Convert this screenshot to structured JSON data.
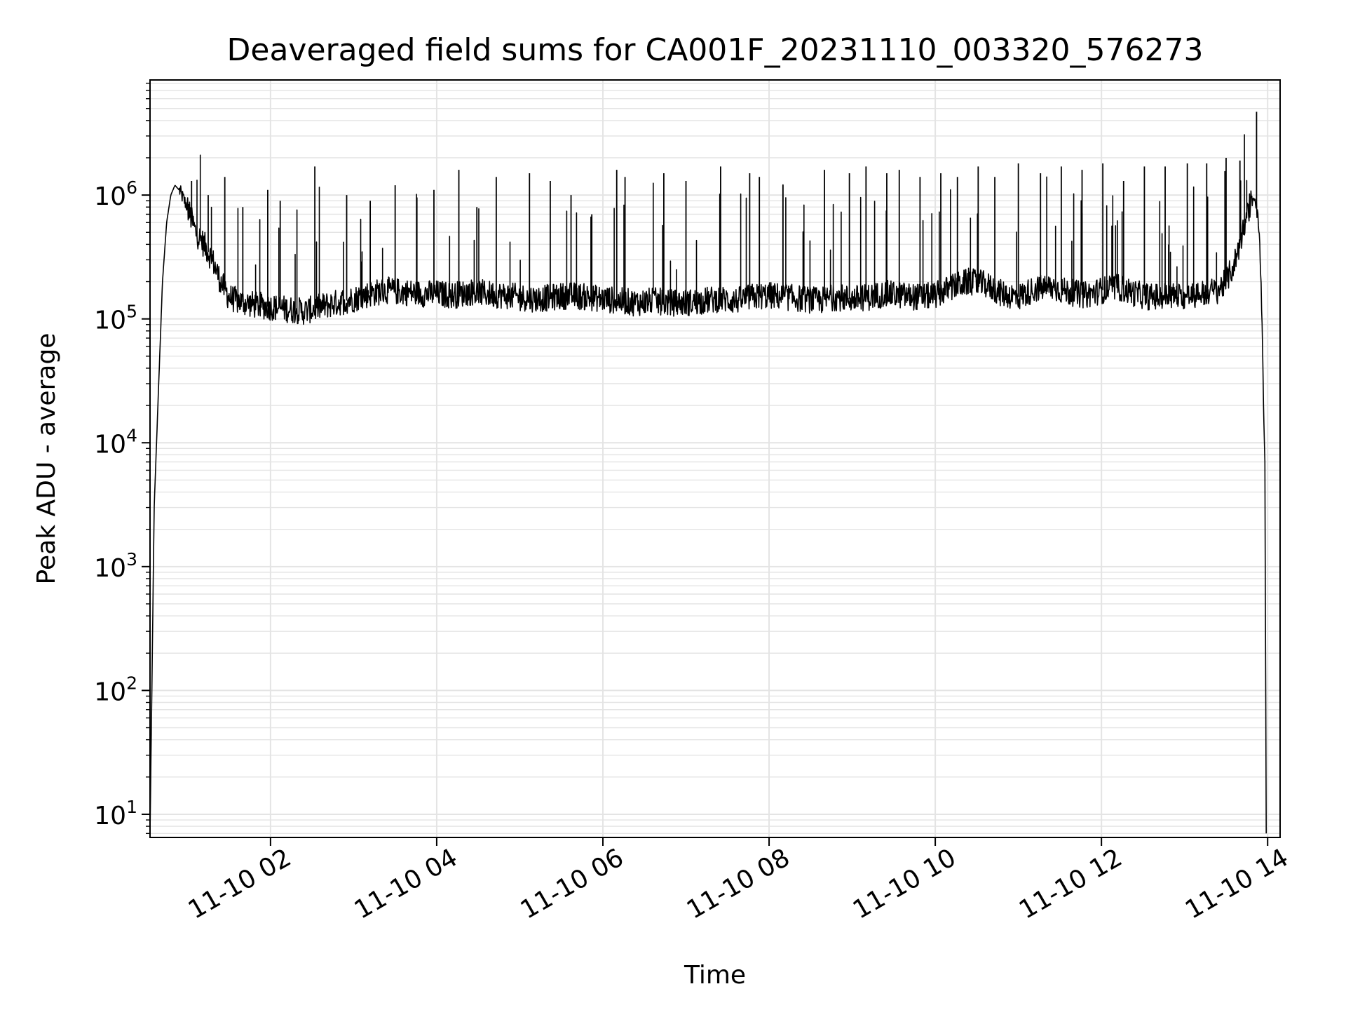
{
  "chart_data": {
    "type": "line",
    "title": "Deaveraged field sums for CA001F_20231110_003320_576273",
    "xlabel": "Time",
    "ylabel": "Peak ADU - average",
    "yscale": "log",
    "ylim": [
      6.5,
      8500000
    ],
    "xlim_hours": [
      0.55,
      14.15
    ],
    "grid": true,
    "legend": "none",
    "colors": {
      "line": "#000000",
      "grid": "#e4e4e4",
      "axes": "#000000",
      "background": "#ffffff"
    },
    "x_ticks": [
      {
        "label": "11-10 02",
        "hour": 2
      },
      {
        "label": "11-10 04",
        "hour": 4
      },
      {
        "label": "11-10 06",
        "hour": 6
      },
      {
        "label": "11-10 08",
        "hour": 8
      },
      {
        "label": "11-10 10",
        "hour": 10
      },
      {
        "label": "11-10 12",
        "hour": 12
      },
      {
        "label": "11-10 14",
        "hour": 14
      }
    ],
    "y_ticks": [
      {
        "base": "10",
        "exp": "1",
        "value": 10
      },
      {
        "base": "10",
        "exp": "2",
        "value": 100
      },
      {
        "base": "10",
        "exp": "3",
        "value": 1000
      },
      {
        "base": "10",
        "exp": "4",
        "value": 10000
      },
      {
        "base": "10",
        "exp": "5",
        "value": 100000
      },
      {
        "base": "10",
        "exp": "6",
        "value": 1000000
      }
    ],
    "series": [
      {
        "x": [
          "11-10 00:33",
          "11-10 00:36",
          "11-10 00:39",
          "11-10 00:42",
          "11-10 00:45",
          "11-10 00:48",
          "11-10 00:51",
          "11-10 00:54",
          "11-10 01:00",
          "11-10 01:06",
          "11-10 01:12",
          "11-10 01:18",
          "11-10 01:24",
          "11-10 01:30",
          "11-10 01:36",
          "11-10 01:48",
          "11-10 02:00",
          "11-10 02:12",
          "11-10 02:24",
          "11-10 02:36",
          "11-10 02:48",
          "11-10 03:00",
          "11-10 03:12",
          "11-10 03:24",
          "11-10 03:36",
          "11-10 03:48",
          "11-10 04:00",
          "11-10 04:12",
          "11-10 04:24",
          "11-10 04:36",
          "11-10 04:48",
          "11-10 05:00",
          "11-10 05:12",
          "11-10 05:24",
          "11-10 05:36",
          "11-10 05:48",
          "11-10 06:00",
          "11-10 06:12",
          "11-10 06:24",
          "11-10 06:36",
          "11-10 06:48",
          "11-10 07:00",
          "11-10 07:12",
          "11-10 07:24",
          "11-10 07:36",
          "11-10 07:48",
          "11-10 08:00",
          "11-10 08:12",
          "11-10 08:24",
          "11-10 08:36",
          "11-10 08:48",
          "11-10 09:00",
          "11-10 09:12",
          "11-10 09:24",
          "11-10 09:36",
          "11-10 09:48",
          "11-10 10:00",
          "11-10 10:12",
          "11-10 10:24",
          "11-10 10:36",
          "11-10 10:48",
          "11-10 11:00",
          "11-10 11:12",
          "11-10 11:24",
          "11-10 11:36",
          "11-10 11:48",
          "11-10 12:00",
          "11-10 12:12",
          "11-10 12:24",
          "11-10 12:36",
          "11-10 12:48",
          "11-10 13:00",
          "11-10 13:12",
          "11-10 13:24",
          "11-10 13:30",
          "11-10 13:36",
          "11-10 13:42",
          "11-10 13:48",
          "11-10 13:51",
          "11-10 13:54",
          "11-10 13:56",
          "11-10 13:57",
          "11-10 13:58",
          "11-10 13:59"
        ],
        "y": [
          7,
          3000,
          25000,
          200000,
          600000,
          1000000,
          1200000,
          1100000,
          800000,
          500000,
          400000,
          300000,
          200000,
          150000,
          140000,
          130000,
          125000,
          120000,
          115000,
          125000,
          135000,
          145000,
          160000,
          170000,
          165000,
          160000,
          160000,
          155000,
          165000,
          160000,
          155000,
          150000,
          145000,
          150000,
          155000,
          150000,
          145000,
          140000,
          135000,
          140000,
          135000,
          135000,
          140000,
          145000,
          140000,
          150000,
          155000,
          150000,
          145000,
          140000,
          150000,
          145000,
          150000,
          160000,
          155000,
          150000,
          155000,
          180000,
          200000,
          190000,
          160000,
          150000,
          175000,
          180000,
          165000,
          155000,
          170000,
          180000,
          160000,
          150000,
          155000,
          150000,
          160000,
          170000,
          200000,
          280000,
          500000,
          900000,
          1000000,
          500000,
          100000,
          20000,
          7000,
          7
        ]
      }
    ],
    "spikes": {
      "x": [
        "11-10 01:03",
        "11-10 01:15",
        "11-10 01:27",
        "11-10 01:40",
        "11-10 01:58",
        "11-10 02:07",
        "11-10 02:32",
        "11-10 02:55",
        "11-10 03:12",
        "11-10 03:30",
        "11-10 03:58",
        "11-10 04:16",
        "11-10 04:29",
        "11-10 04:43",
        "11-10 05:07",
        "11-10 05:22",
        "11-10 05:37",
        "11-10 05:52",
        "11-10 06:10",
        "11-10 06:16",
        "11-10 06:44",
        "11-10 07:00",
        "11-10 07:25",
        "11-10 07:46",
        "11-10 07:53",
        "11-10 08:10",
        "11-10 08:40",
        "11-10 08:58",
        "11-10 09:10",
        "11-10 09:25",
        "11-10 09:34",
        "11-10 09:49",
        "11-10 10:04",
        "11-10 10:16",
        "11-10 10:31",
        "11-10 10:43",
        "11-10 11:00",
        "11-10 11:16",
        "11-10 11:31",
        "11-10 11:46",
        "11-10 12:01",
        "11-10 12:16",
        "11-10 12:31",
        "11-10 12:46",
        "11-10 13:02",
        "11-10 13:16",
        "11-10 13:30",
        "11-10 13:40",
        "11-10 13:52"
      ],
      "y": [
        1300000,
        1000000,
        1400000,
        800000,
        1100000,
        900000,
        1700000,
        1000000,
        900000,
        1200000,
        1100000,
        1600000,
        800000,
        1400000,
        1500000,
        1300000,
        1000000,
        700000,
        1600000,
        1400000,
        1500000,
        1300000,
        1700000,
        1500000,
        1400000,
        1200000,
        1600000,
        1500000,
        1700000,
        1500000,
        1600000,
        1400000,
        1500000,
        1400000,
        1700000,
        1400000,
        1800000,
        1500000,
        1700000,
        1600000,
        1800000,
        1300000,
        1700000,
        1700000,
        1800000,
        1800000,
        2000000,
        1900000,
        4700000
      ]
    }
  }
}
